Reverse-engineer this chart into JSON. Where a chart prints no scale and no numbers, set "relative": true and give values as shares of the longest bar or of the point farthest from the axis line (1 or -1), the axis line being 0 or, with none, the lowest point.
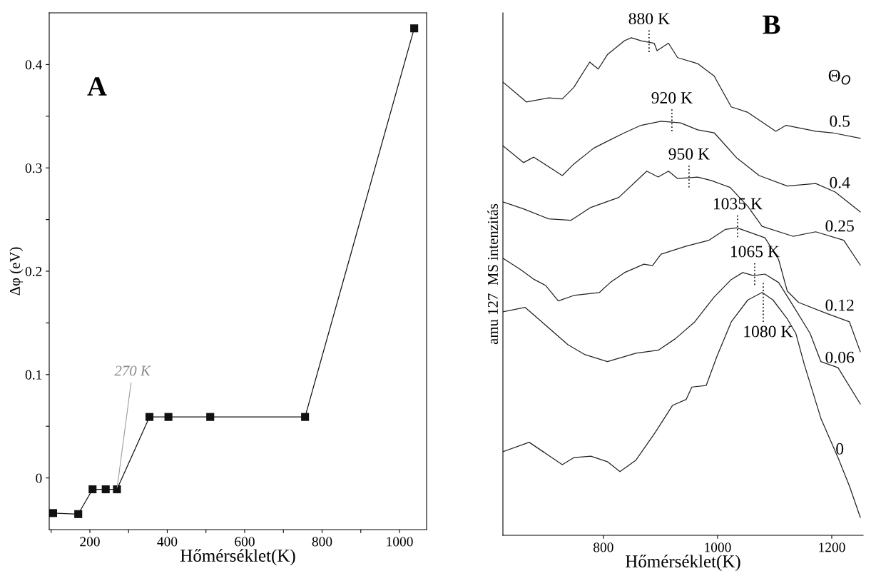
{
  "chart_data": [
    {
      "type": "line",
      "xlabel": "Hőmérséklet(K)",
      "ylabel": "Δφ (eV)",
      "annotations": [
        "A",
        {
          "text": "270 K",
          "x": 270,
          "y": -0.011
        }
      ],
      "marker": "square",
      "line_style": "solid",
      "grid": false,
      "legend": false,
      "x": [
        105,
        170,
        207,
        241,
        270,
        354,
        403,
        511,
        756,
        1038
      ],
      "series": [
        {
          "color": "#111111",
          "values": [
            -0.034,
            -0.035,
            -0.011,
            -0.011,
            -0.011,
            0.059,
            0.059,
            0.059,
            0.059,
            0.435
          ]
        }
      ],
      "xlim": [
        95,
        1070
      ],
      "xticks": [
        {
          "value": 100,
          "label": null
        },
        200,
        {
          "value": 300,
          "label": null
        },
        400,
        {
          "value": 500,
          "label": null
        },
        600,
        {
          "value": 700,
          "label": null
        },
        800,
        {
          "value": 900,
          "label": null
        },
        1000
      ],
      "ylim": [
        -0.05,
        0.45
      ],
      "yticks": [
        0,
        {
          "value": 0.05,
          "label": null
        },
        0.1,
        {
          "value": 0.15,
          "label": null
        },
        0.2,
        {
          "value": 0.25,
          "label": null
        },
        0.3,
        {
          "value": 0.35,
          "label": null
        },
        0.4
      ]
    },
    {
      "type": "line",
      "relative": true,
      "xlabel": "Hőmérséklet(K)",
      "ylabel": "amu 127  MS intenzitás",
      "legend_title": "Θ$_{O}$",
      "tick_labels": "x",
      "grid": false,
      "legend": false,
      "marker": "none",
      "line_style": "solid",
      "annotations": [
        "B",
        {
          "text": "880 K",
          "x": 880,
          "y": 0.99
        },
        {
          "text": "920 K",
          "x": 920,
          "y": 0.831
        },
        {
          "text": "950 K",
          "x": 950,
          "y": 0.718
        },
        {
          "text": "1035 K",
          "x": 1035,
          "y": 0.618
        },
        {
          "text": "1065 K",
          "x": 1065,
          "y": 0.522
        },
        {
          "text": "1080 K",
          "x": 1080,
          "y": 0.487
        }
      ],
      "xlim": [
        624,
        1255
      ],
      "xticks": [
        800,
        1000,
        1200
      ],
      "series": [
        {
          "name": "0.5",
          "color": "#222222",
          "x": [
            624,
            665,
            704,
            728,
            748,
            776,
            791,
            807,
            837,
            849,
            866,
            889,
            894,
            914,
            930,
            965,
            994,
            1024,
            1053,
            1102,
            1120,
            1172,
            1201,
            1250
          ],
          "values": [
            0.911,
            0.871,
            0.879,
            0.877,
            0.9,
            0.951,
            0.937,
            0.966,
            0.994,
            1.0,
            0.994,
            0.989,
            0.974,
            0.989,
            0.96,
            0.948,
            0.923,
            0.861,
            0.85,
            0.812,
            0.824,
            0.812,
            0.809,
            0.798
          ]
        },
        {
          "name": "0.4",
          "color": "#222222",
          "x": [
            624,
            660,
            678,
            728,
            748,
            783,
            807,
            837,
            866,
            901,
            935,
            965,
            994,
            1034,
            1073,
            1122,
            1172,
            1206,
            1250
          ],
          "values": [
            0.783,
            0.749,
            0.76,
            0.723,
            0.746,
            0.778,
            0.792,
            0.809,
            0.824,
            0.832,
            0.829,
            0.815,
            0.809,
            0.758,
            0.723,
            0.702,
            0.707,
            0.69,
            0.65
          ]
        },
        {
          "name": "0.25",
          "color": "#222222",
          "x": [
            624,
            660,
            704,
            743,
            778,
            827,
            876,
            896,
            914,
            930,
            965,
            989,
            1022,
            1053,
            1078,
            1132,
            1172,
            1221,
            1250
          ],
          "values": [
            0.67,
            0.656,
            0.636,
            0.633,
            0.659,
            0.679,
            0.732,
            0.72,
            0.732,
            0.717,
            0.72,
            0.713,
            0.699,
            0.661,
            0.621,
            0.601,
            0.61,
            0.593,
            0.543
          ]
        },
        {
          "name": "0.12",
          "color": "#222222",
          "x": [
            624,
            655,
            679,
            699,
            721,
            748,
            793,
            812,
            837,
            871,
            886,
            901,
            945,
            985,
            1014,
            1034,
            1083,
            1107,
            1122,
            1142,
            1191,
            1231,
            1250
          ],
          "values": [
            0.557,
            0.534,
            0.514,
            0.502,
            0.471,
            0.482,
            0.488,
            0.508,
            0.528,
            0.545,
            0.542,
            0.565,
            0.581,
            0.593,
            0.615,
            0.618,
            0.598,
            0.554,
            0.491,
            0.468,
            0.446,
            0.429,
            0.369
          ]
        },
        {
          "name": "0.06",
          "color": "#222222",
          "x": [
            624,
            663,
            689,
            738,
            768,
            807,
            857,
            896,
            926,
            960,
            994,
            1024,
            1044,
            1063,
            1083,
            1107,
            1132,
            1162,
            1181,
            1211,
            1250
          ],
          "values": [
            0.449,
            0.458,
            0.432,
            0.383,
            0.363,
            0.349,
            0.366,
            0.372,
            0.395,
            0.429,
            0.479,
            0.514,
            0.528,
            0.522,
            0.525,
            0.508,
            0.462,
            0.406,
            0.349,
            0.337,
            0.264
          ]
        },
        {
          "name": "0",
          "color": "#222222",
          "x": [
            624,
            670,
            728,
            748,
            778,
            807,
            829,
            857,
            891,
            921,
            945,
            955,
            980,
            999,
            1024,
            1053,
            1078,
            1097,
            1122,
            1137,
            1152,
            1181,
            1211,
            1231,
            1250
          ],
          "values": [
            0.168,
            0.187,
            0.142,
            0.156,
            0.159,
            0.148,
            0.128,
            0.151,
            0.207,
            0.261,
            0.273,
            0.298,
            0.301,
            0.36,
            0.429,
            0.473,
            0.488,
            0.473,
            0.435,
            0.406,
            0.343,
            0.235,
            0.156,
            0.099,
            0.036
          ]
        }
      ]
    }
  ]
}
